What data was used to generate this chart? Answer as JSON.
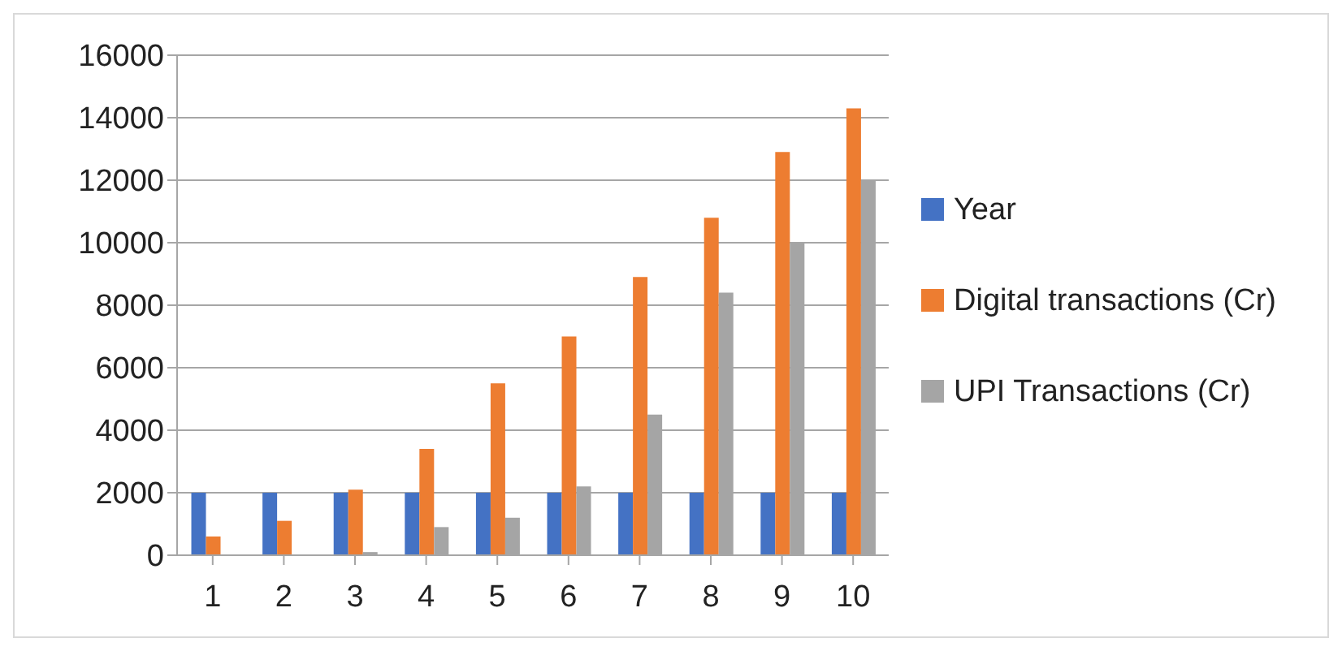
{
  "chart_data": {
    "type": "bar",
    "categories": [
      "1",
      "2",
      "3",
      "4",
      "5",
      "6",
      "7",
      "8",
      "9",
      "10"
    ],
    "series": [
      {
        "name": "Year",
        "color": "#4472c4",
        "values": [
          2000,
          2000,
          2000,
          2000,
          2000,
          2000,
          2000,
          2000,
          2000,
          2000
        ]
      },
      {
        "name": "Digital transactions (Cr)",
        "color": "#ed7d31",
        "values": [
          600,
          1100,
          2100,
          3400,
          5500,
          7000,
          8900,
          10800,
          12900,
          14300
        ]
      },
      {
        "name": "UPI Transactions (Cr)",
        "color": "#a5a5a5",
        "values": [
          0,
          0,
          100,
          900,
          1200,
          2200,
          4500,
          8400,
          10000,
          12000
        ]
      }
    ],
    "ylim": [
      0,
      16000
    ],
    "yticks": [
      0,
      2000,
      4000,
      6000,
      8000,
      10000,
      12000,
      14000,
      16000
    ],
    "grid": "y",
    "legend": "right"
  }
}
